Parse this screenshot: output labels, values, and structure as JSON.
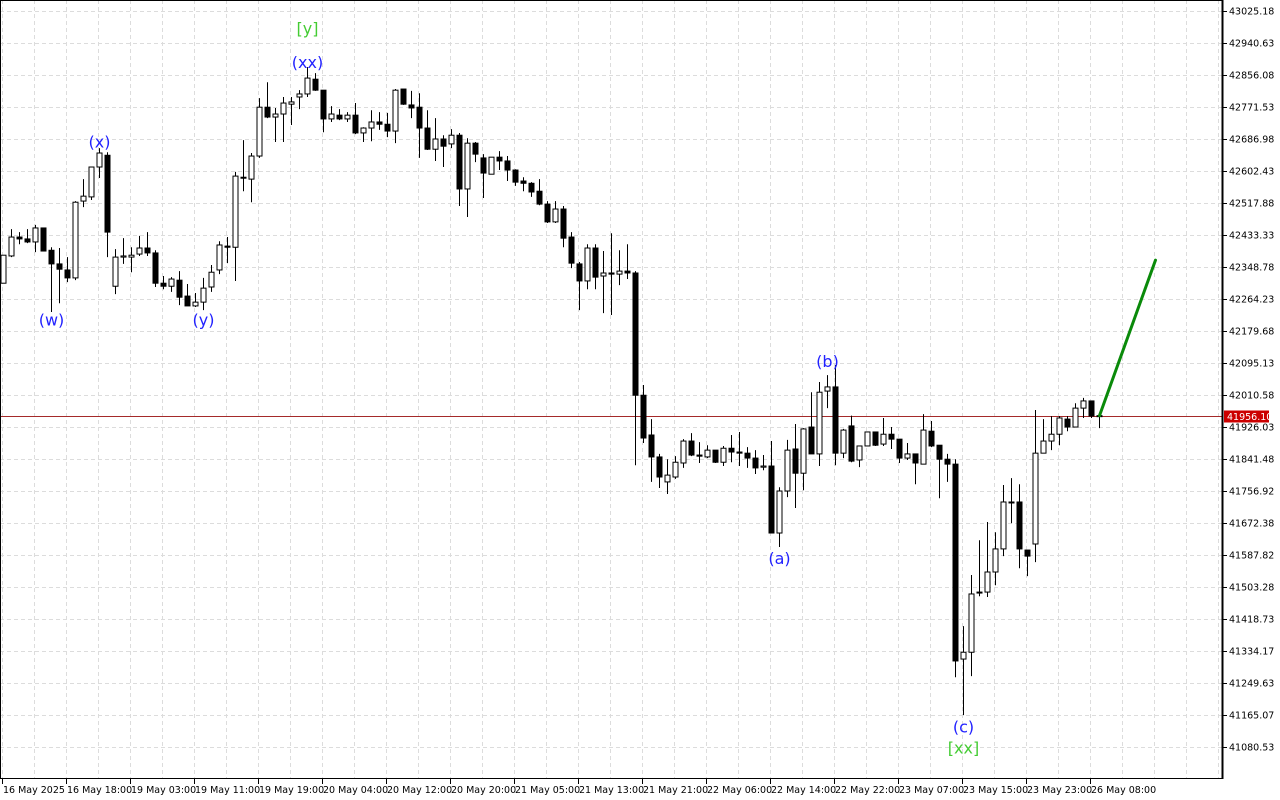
{
  "chart_data": {
    "type": "candlestick",
    "grid": true,
    "colors": {
      "background": "#ffffff",
      "grid": "#dcdcdc",
      "bull_body": "#ffffff",
      "bear_body": "#000000",
      "outline": "#000000",
      "price_line": "#a52a2a",
      "price_tag": "#cc0000",
      "wave_label": "#2222ff",
      "wave_label_major": "#44cc33",
      "forecast": "#0a8a0a"
    },
    "y_axis": {
      "range": [
        41020,
        43050
      ],
      "ticks": [
        "43025.18",
        "42940.63",
        "42856.08",
        "42771.53",
        "42686.98",
        "42602.43",
        "42517.88",
        "42433.33",
        "42348.78",
        "42264.23",
        "42179.68",
        "42095.13",
        "42010.58",
        "41926.03",
        "41841.48",
        "41756.92",
        "41672.38",
        "41587.82",
        "41503.28",
        "41418.73",
        "41334.17",
        "41249.63",
        "41165.07",
        "41080.53"
      ]
    },
    "x_axis": {
      "ticks": [
        "16 May 2025",
        "16 May 18:00",
        "19 May 03:00",
        "19 May 11:00",
        "19 May 19:00",
        "20 May 04:00",
        "20 May 12:00",
        "20 May 20:00",
        "21 May 05:00",
        "21 May 13:00",
        "21 May 21:00",
        "22 May 06:00",
        "22 May 14:00",
        "22 May 22:00",
        "23 May 07:00",
        "23 May 15:00",
        "23 May 23:00",
        "26 May 08:00"
      ],
      "tick_every_candles": 8
    },
    "current_price": "41956.10",
    "ohlc": [
      [
        42306,
        42380,
        42306,
        42380
      ],
      [
        42378,
        42449,
        42375,
        42428
      ],
      [
        42428,
        42441,
        42409,
        42423
      ],
      [
        42423,
        42449,
        42412,
        42415
      ],
      [
        42415,
        42460,
        42388,
        42452
      ],
      [
        42452,
        42452,
        42391,
        42391
      ],
      [
        42393,
        42401,
        42230,
        42357
      ],
      [
        42357,
        42399,
        42253,
        42343
      ],
      [
        42341,
        42375,
        42309,
        42320
      ],
      [
        42320,
        42523,
        42314,
        42520
      ],
      [
        42523,
        42581,
        42507,
        42536
      ],
      [
        42534,
        42613,
        42526,
        42613
      ],
      [
        42613,
        42663,
        42584,
        42650
      ],
      [
        42644,
        42652,
        42375,
        42441
      ],
      [
        42298,
        42396,
        42277,
        42375
      ],
      [
        42375,
        42425,
        42357,
        42378
      ],
      [
        42375,
        42401,
        42335,
        42380
      ],
      [
        42383,
        42431,
        42378,
        42399
      ],
      [
        42399,
        42441,
        42378,
        42386
      ],
      [
        42386,
        42393,
        42296,
        42306
      ],
      [
        42306,
        42325,
        42290,
        42298
      ],
      [
        42298,
        42322,
        42283,
        42317
      ],
      [
        42314,
        42338,
        42248,
        42269
      ],
      [
        42272,
        42304,
        42246,
        42246
      ],
      [
        42246,
        42280,
        42243,
        42256
      ],
      [
        42256,
        42320,
        42235,
        42293
      ],
      [
        42296,
        42354,
        42283,
        42335
      ],
      [
        42341,
        42417,
        42330,
        42407
      ],
      [
        42404,
        42428,
        42359,
        42401
      ],
      [
        42401,
        42600,
        42312,
        42589
      ],
      [
        42584,
        42684,
        42549,
        42586
      ],
      [
        42581,
        42650,
        42520,
        42642
      ],
      [
        42642,
        42795,
        42637,
        42771
      ],
      [
        42771,
        42837,
        42742,
        42745
      ],
      [
        42745,
        42769,
        42679,
        42753
      ],
      [
        42753,
        42798,
        42679,
        42782
      ],
      [
        42779,
        42798,
        42724,
        42785
      ],
      [
        42798,
        42816,
        42766,
        42806
      ],
      [
        42806,
        42877,
        42798,
        42848
      ],
      [
        42845,
        42861,
        42814,
        42816
      ],
      [
        42816,
        42816,
        42705,
        42740
      ],
      [
        42740,
        42774,
        42732,
        42753
      ],
      [
        42750,
        42766,
        42737,
        42740
      ],
      [
        42740,
        42758,
        42732,
        42750
      ],
      [
        42750,
        42782,
        42700,
        42703
      ],
      [
        42703,
        42718,
        42679,
        42716
      ],
      [
        42716,
        42763,
        42681,
        42732
      ],
      [
        42732,
        42758,
        42711,
        42726
      ],
      [
        42726,
        42756,
        42692,
        42708
      ],
      [
        42708,
        42819,
        42676,
        42816
      ],
      [
        42819,
        42819,
        42777,
        42779
      ],
      [
        42777,
        42814,
        42742,
        42769
      ],
      [
        42771,
        42808,
        42637,
        42716
      ],
      [
        42716,
        42763,
        42658,
        42660
      ],
      [
        42660,
        42742,
        42629,
        42687
      ],
      [
        42687,
        42697,
        42613,
        42668
      ],
      [
        42674,
        42713,
        42663,
        42697
      ],
      [
        42697,
        42703,
        42510,
        42555
      ],
      [
        42555,
        42689,
        42481,
        42676
      ],
      [
        42676,
        42679,
        42626,
        42647
      ],
      [
        42637,
        42647,
        42531,
        42597
      ],
      [
        42594,
        42639,
        42594,
        42639
      ],
      [
        42639,
        42655,
        42605,
        42629
      ],
      [
        42629,
        42642,
        42576,
        42605
      ],
      [
        42605,
        42607,
        42563,
        42573
      ],
      [
        42576,
        42586,
        42549,
        42570
      ],
      [
        42570,
        42573,
        42534,
        42547
      ],
      [
        42549,
        42581,
        42512,
        42515
      ],
      [
        42515,
        42523,
        42465,
        42468
      ],
      [
        42468,
        42523,
        42465,
        42502
      ],
      [
        42502,
        42510,
        42401,
        42425
      ],
      [
        42428,
        42441,
        42346,
        42359
      ],
      [
        42357,
        42362,
        42235,
        42312
      ],
      [
        42312,
        42409,
        42290,
        42399
      ],
      [
        42399,
        42409,
        42290,
        42322
      ],
      [
        42325,
        42391,
        42227,
        42333
      ],
      [
        42333,
        42438,
        42222,
        42330
      ],
      [
        42330,
        42393,
        42301,
        42338
      ],
      [
        42338,
        42409,
        42317,
        42333
      ],
      [
        42333,
        42338,
        41825,
        42010
      ],
      [
        42010,
        42037,
        41884,
        41897
      ],
      [
        41905,
        41947,
        41781,
        41847
      ],
      [
        41847,
        41855,
        41765,
        41794
      ],
      [
        41781,
        41841,
        41749,
        41799
      ],
      [
        41794,
        41849,
        41789,
        41833
      ],
      [
        41831,
        41894,
        41818,
        41889
      ],
      [
        41889,
        41910,
        41849,
        41852
      ],
      [
        41852,
        41886,
        41831,
        41849
      ],
      [
        41847,
        41878,
        41844,
        41865
      ],
      [
        41865,
        41865,
        41831,
        41833
      ],
      [
        41833,
        41876,
        41823,
        41870
      ],
      [
        41870,
        41905,
        41833,
        41860
      ],
      [
        41860,
        41913,
        41823,
        41857
      ],
      [
        41857,
        41873,
        41818,
        41844
      ],
      [
        41844,
        41865,
        41802,
        41818
      ],
      [
        41820,
        41852,
        41812,
        41823
      ],
      [
        41823,
        41889,
        41646,
        41646
      ],
      [
        41646,
        41767,
        41609,
        41757
      ],
      [
        41757,
        41892,
        41741,
        41865
      ],
      [
        41868,
        41934,
        41712,
        41804
      ],
      [
        41804,
        41923,
        41759,
        41921
      ],
      [
        41926,
        42018,
        41855,
        41855
      ],
      [
        41855,
        42045,
        41823,
        42018
      ],
      [
        42021,
        42063,
        41976,
        42032
      ],
      [
        42032,
        42090,
        41825,
        41857
      ],
      [
        41857,
        41921,
        41844,
        41918
      ],
      [
        41929,
        41956,
        41833,
        41836
      ],
      [
        41839,
        41876,
        41820,
        41876
      ],
      [
        41876,
        41913,
        41876,
        41913
      ],
      [
        41913,
        41913,
        41876,
        41878
      ],
      [
        41881,
        41950,
        41876,
        41907
      ],
      [
        41907,
        41926,
        41868,
        41894
      ],
      [
        41894,
        41894,
        41831,
        41844
      ],
      [
        41844,
        41884,
        41839,
        41855
      ],
      [
        41855,
        41855,
        41775,
        41831
      ],
      [
        41828,
        41960,
        41828,
        41918
      ],
      [
        41915,
        41942,
        41873,
        41876
      ],
      [
        41878,
        41878,
        41738,
        41841
      ],
      [
        41841,
        41855,
        41781,
        41828
      ],
      [
        41828,
        41841,
        41265,
        41308
      ],
      [
        41313,
        41400,
        41165,
        41331
      ],
      [
        41331,
        41535,
        41268,
        41485
      ],
      [
        41490,
        41627,
        41479,
        41490
      ],
      [
        41490,
        41675,
        41477,
        41543
      ],
      [
        41543,
        41648,
        41508,
        41604
      ],
      [
        41604,
        41773,
        41585,
        41728
      ],
      [
        41728,
        41791,
        41672,
        41728
      ],
      [
        41728,
        41775,
        41553,
        41604
      ],
      [
        41601,
        41601,
        41532,
        41585
      ],
      [
        41617,
        41971,
        41569,
        41857
      ],
      [
        41857,
        41947,
        41857,
        41889
      ],
      [
        41889,
        41955,
        41865,
        41907
      ],
      [
        41907,
        41955,
        41878,
        41950
      ],
      [
        41947,
        41955,
        41915,
        41926
      ],
      [
        41926,
        41989,
        41926,
        41976
      ],
      [
        41976,
        42003,
        41950,
        41995
      ],
      [
        41995,
        41995,
        41950,
        41955
      ],
      [
        41956.1,
        41958,
        41923,
        41956.1
      ]
    ],
    "wave_labels": [
      {
        "text": "(w)",
        "candle": 6,
        "price": 42210,
        "major": false
      },
      {
        "text": "(x)",
        "candle": 12,
        "price": 42680,
        "major": false
      },
      {
        "text": "(y)",
        "candle": 25,
        "price": 42210,
        "major": false
      },
      {
        "text": "(xx)",
        "candle": 38,
        "price": 42890,
        "major": false
      },
      {
        "text": "[y]",
        "candle": 38,
        "price": 42980,
        "major": true
      },
      {
        "text": "(a)",
        "candle": 97,
        "price": 41580,
        "major": false
      },
      {
        "text": "(b)",
        "candle": 103,
        "price": 42100,
        "major": false
      },
      {
        "text": "(c)",
        "candle": 120,
        "price": 41135,
        "major": false
      },
      {
        "text": "[xx]",
        "candle": 120,
        "price": 41080,
        "major": true
      }
    ],
    "forecast": {
      "from_candle": 137,
      "from_price": 41956.1,
      "to_candle": 144,
      "to_price": 42367
    }
  }
}
